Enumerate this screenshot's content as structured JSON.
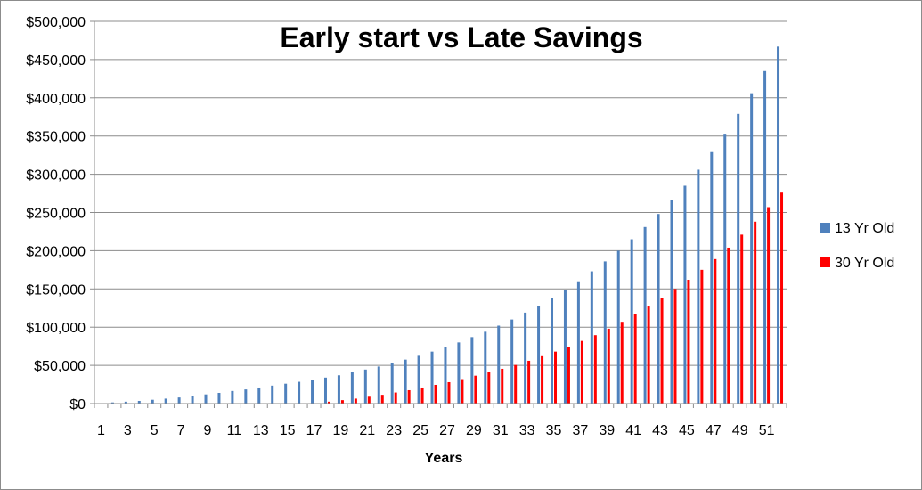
{
  "chart_data": {
    "type": "bar",
    "title": "Early start vs Late Savings",
    "xlabel": "Years",
    "ylabel": "",
    "ylim": [
      0,
      500000
    ],
    "y_ticks": [
      "$0",
      "$50,000",
      "$100,000",
      "$150,000",
      "$200,000",
      "$250,000",
      "$300,000",
      "$350,000",
      "$400,000",
      "$450,000",
      "$500,000"
    ],
    "x_tick_labels": [
      "1",
      "3",
      "5",
      "7",
      "9",
      "11",
      "13",
      "15",
      "17",
      "19",
      "21",
      "23",
      "25",
      "27",
      "29",
      "31",
      "33",
      "35",
      "37",
      "39",
      "41",
      "43",
      "45",
      "47",
      "49",
      "51"
    ],
    "grid": true,
    "legend_position": "right",
    "categories": [
      1,
      2,
      3,
      4,
      5,
      6,
      7,
      8,
      9,
      10,
      11,
      12,
      13,
      14,
      15,
      16,
      17,
      18,
      19,
      20,
      21,
      22,
      23,
      24,
      25,
      26,
      27,
      28,
      29,
      30,
      31,
      32,
      33,
      34,
      35,
      36,
      37,
      38,
      39,
      40,
      41,
      42,
      43,
      44,
      45,
      46,
      47,
      48,
      49,
      50,
      51,
      52
    ],
    "series": [
      {
        "name": "13 Yr Old",
        "color": "#4f81bd",
        "values": [
          500,
          1500,
          2500,
          3500,
          5000,
          6500,
          8000,
          10000,
          12000,
          14000,
          16500,
          18500,
          21000,
          23500,
          26000,
          28500,
          31000,
          34000,
          37000,
          41000,
          44500,
          48500,
          53000,
          57500,
          62500,
          68000,
          73500,
          80000,
          87000,
          94000,
          102000,
          110000,
          119000,
          128000,
          138000,
          149000,
          160000,
          173000,
          186000,
          200000,
          215000,
          231000,
          248000,
          266000,
          285000,
          306000,
          329000,
          353000,
          379000,
          406000,
          435000,
          467000
        ]
      },
      {
        "name": "30 Yr Old",
        "color": "#ff0000",
        "values": [
          0,
          0,
          0,
          0,
          0,
          0,
          0,
          0,
          0,
          0,
          0,
          0,
          0,
          0,
          0,
          0,
          0,
          2500,
          4500,
          6500,
          9000,
          11500,
          14500,
          17500,
          21000,
          24500,
          28000,
          32000,
          36500,
          41000,
          45500,
          50500,
          56000,
          62000,
          68000,
          74500,
          82000,
          89500,
          98000,
          107000,
          117000,
          127000,
          138000,
          150000,
          162000,
          175000,
          189000,
          204000,
          221000,
          238000,
          257000,
          276000
        ]
      }
    ]
  }
}
